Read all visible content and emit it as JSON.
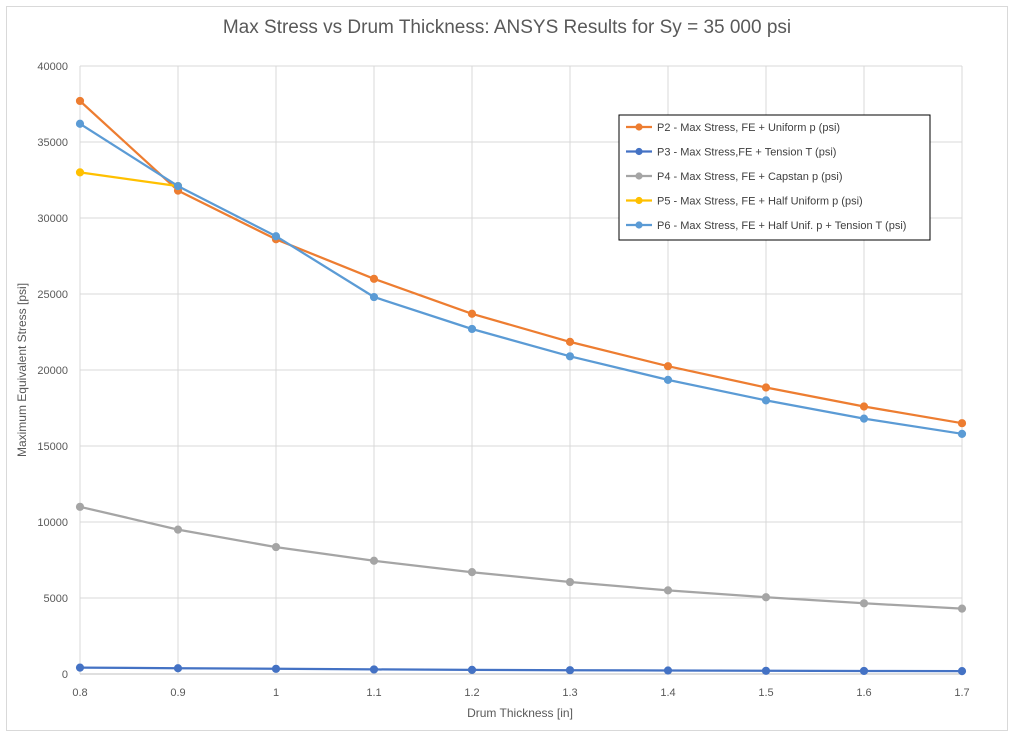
{
  "chart_data": {
    "type": "line",
    "title": "Max Stress vs Drum Thickness: ANSYS Results for Sy = 35 000 psi",
    "xlabel": "Drum Thickness [in]",
    "ylabel": "Maximum Equivalent Stress [psi]",
    "xlim": [
      0.8,
      1.7
    ],
    "ylim": [
      0,
      40000
    ],
    "x": [
      0.8,
      0.9,
      1.0,
      1.1,
      1.2,
      1.3,
      1.4,
      1.5,
      1.6,
      1.7
    ],
    "x_tick_labels": [
      "0.8",
      "0.9",
      "1",
      "1.1",
      "1.2",
      "1.3",
      "1.4",
      "1.5",
      "1.6",
      "1.7"
    ],
    "y_ticks": [
      0,
      5000,
      10000,
      15000,
      20000,
      25000,
      30000,
      35000,
      40000
    ],
    "y_tick_labels": [
      "0",
      "5000",
      "10000",
      "15000",
      "20000",
      "25000",
      "30000",
      "35000",
      "40000"
    ],
    "grid": true,
    "legend_position": "top-right",
    "series": [
      {
        "name": "P2 - Max Stress, FE + Uniform p (psi)",
        "color": "#ED7D31",
        "x": [
          0.8,
          0.9,
          1.0,
          1.1,
          1.2,
          1.3,
          1.4,
          1.5,
          1.6,
          1.7
        ],
        "values": [
          37700,
          31800,
          28600,
          26000,
          23700,
          21850,
          20250,
          18850,
          17600,
          16500
        ]
      },
      {
        "name": "P3 - Max Stress,FE + Tension T (psi)",
        "color": "#4472C4",
        "x": [
          0.8,
          0.9,
          1.0,
          1.1,
          1.2,
          1.3,
          1.4,
          1.5,
          1.6,
          1.7
        ],
        "values": [
          420,
          380,
          340,
          300,
          270,
          250,
          230,
          210,
          200,
          190
        ]
      },
      {
        "name": "P4 - Max Stress, FE + Capstan p (psi)",
        "color": "#A5A5A5",
        "x": [
          0.8,
          0.9,
          1.0,
          1.1,
          1.2,
          1.3,
          1.4,
          1.5,
          1.6,
          1.7
        ],
        "values": [
          11000,
          9500,
          8350,
          7450,
          6700,
          6050,
          5500,
          5050,
          4650,
          4300
        ]
      },
      {
        "name": "P5 - Max Stress, FE + Half Uniform p (psi)",
        "color": "#FFC000",
        "x": [
          0.8,
          0.9
        ],
        "values": [
          33000,
          32100
        ]
      },
      {
        "name": "P6 - Max Stress, FE + Half Unif. p + Tension T (psi)",
        "color": "#5B9BD5",
        "x": [
          0.8,
          0.9,
          1.0,
          1.1,
          1.2,
          1.3,
          1.4,
          1.5,
          1.6,
          1.7
        ],
        "values": [
          36200,
          32100,
          28800,
          24800,
          22700,
          20900,
          19350,
          18000,
          16800,
          15800
        ]
      }
    ]
  }
}
